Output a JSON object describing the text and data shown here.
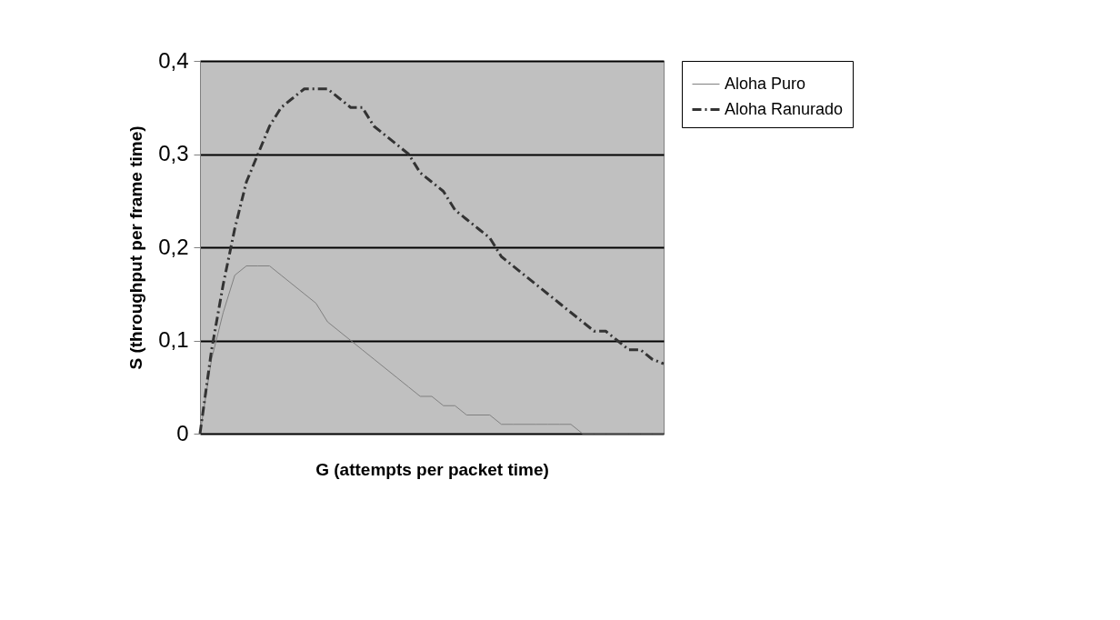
{
  "chart_data": {
    "type": "line",
    "xlabel": "G (attempts per packet time)",
    "ylabel": "S (throughput per frame time)",
    "categories": [
      null,
      null,
      null,
      null,
      null,
      null,
      null,
      null,
      null,
      null,
      null,
      null,
      null,
      null,
      null,
      null,
      null,
      null,
      null,
      null,
      null,
      null,
      null,
      null,
      null,
      null,
      null,
      null,
      null,
      null,
      null,
      null,
      null,
      null,
      null,
      null,
      null,
      null,
      null,
      null,
      null
    ],
    "series": [
      {
        "name": "Aloha Puro",
        "color": "#808080",
        "line_style": "solid",
        "values": [
          0,
          0.08,
          0.13,
          0.17,
          0.18,
          0.18,
          0.18,
          0.17,
          0.16,
          0.15,
          0.14,
          0.12,
          0.11,
          0.1,
          0.09,
          0.08,
          0.07,
          0.06,
          0.05,
          0.04,
          0.04,
          0.03,
          0.03,
          0.02,
          0.02,
          0.02,
          0.01,
          0.01,
          0.01,
          0.01,
          0.01,
          0.01,
          0.01,
          0,
          0,
          0,
          0,
          0,
          0,
          0,
          0
        ]
      },
      {
        "name": "Aloha Ranurado",
        "color": "#333333",
        "line_style": "dashed",
        "values": [
          0,
          0.09,
          0.16,
          0.22,
          0.27,
          0.3,
          0.33,
          0.35,
          0.36,
          0.37,
          0.37,
          0.37,
          0.36,
          0.35,
          0.35,
          0.33,
          0.32,
          0.31,
          0.3,
          0.28,
          0.27,
          0.26,
          0.24,
          0.23,
          0.22,
          0.21,
          0.19,
          0.18,
          0.17,
          0.16,
          0.15,
          0.14,
          0.13,
          0.12,
          0.11,
          0.11,
          0.1,
          0.09,
          0.09,
          0.08,
          0.075
        ]
      }
    ],
    "ylim": [
      0,
      0.4
    ],
    "yticks": [
      0,
      {
        "value": 0.1,
        "label": "0,1"
      },
      {
        "value": 0.2,
        "label": "0,2"
      },
      {
        "value": 0.3,
        "label": "0,3"
      },
      {
        "value": 0.4,
        "label": "0,4"
      }
    ],
    "grid": "y",
    "legend": "right",
    "tick_labels": "y",
    "marker": "none"
  }
}
